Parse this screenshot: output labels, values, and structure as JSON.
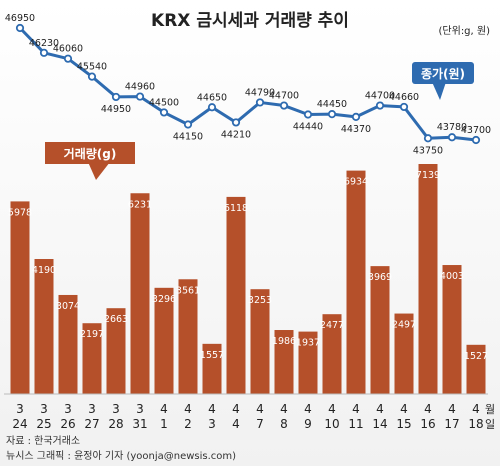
{
  "chart_data": {
    "title": "KRX 금시세과 거래량 추이",
    "unit_note": "(단위:g, 원)",
    "type": "bar+line",
    "dates": [
      {
        "month": "3",
        "day": "24"
      },
      {
        "month": "3",
        "day": "25"
      },
      {
        "month": "3",
        "day": "26"
      },
      {
        "month": "3",
        "day": "27"
      },
      {
        "month": "3",
        "day": "28"
      },
      {
        "month": "3",
        "day": "31"
      },
      {
        "month": "4",
        "day": "1"
      },
      {
        "month": "4",
        "day": "2"
      },
      {
        "month": "4",
        "day": "3"
      },
      {
        "month": "4",
        "day": "4"
      },
      {
        "month": "4",
        "day": "7"
      },
      {
        "month": "4",
        "day": "8"
      },
      {
        "month": "4",
        "day": "9"
      },
      {
        "month": "4",
        "day": "10"
      },
      {
        "month": "4",
        "day": "11"
      },
      {
        "month": "4",
        "day": "14"
      },
      {
        "month": "4",
        "day": "15"
      },
      {
        "month": "4",
        "day": "16"
      },
      {
        "month": "4",
        "day": "17"
      },
      {
        "month": "4",
        "day": "18"
      }
    ],
    "axis_unit_labels": [
      "월",
      "일"
    ],
    "volume": {
      "name": "거래량(g)",
      "color": "#b5502a",
      "values": [
        5978,
        4190,
        3074,
        2197,
        2663,
        6231,
        3296,
        3561,
        1557,
        6118,
        3253,
        1986,
        1937,
        2477,
        6934,
        3969,
        2497,
        7139,
        4003,
        1527
      ]
    },
    "price": {
      "name": "종가(원)",
      "color": "#2e6bb0",
      "values": [
        46950,
        46230,
        46060,
        45540,
        44950,
        44960,
        44500,
        44150,
        44650,
        44210,
        44790,
        44700,
        44440,
        44450,
        44370,
        44700,
        44660,
        43750,
        43780,
        43700
      ]
    },
    "footer": [
      "자료 : 한국거래소",
      "뉴시스 그래픽 : 윤정아 기자 (yoonja@newsis.com)"
    ]
  }
}
